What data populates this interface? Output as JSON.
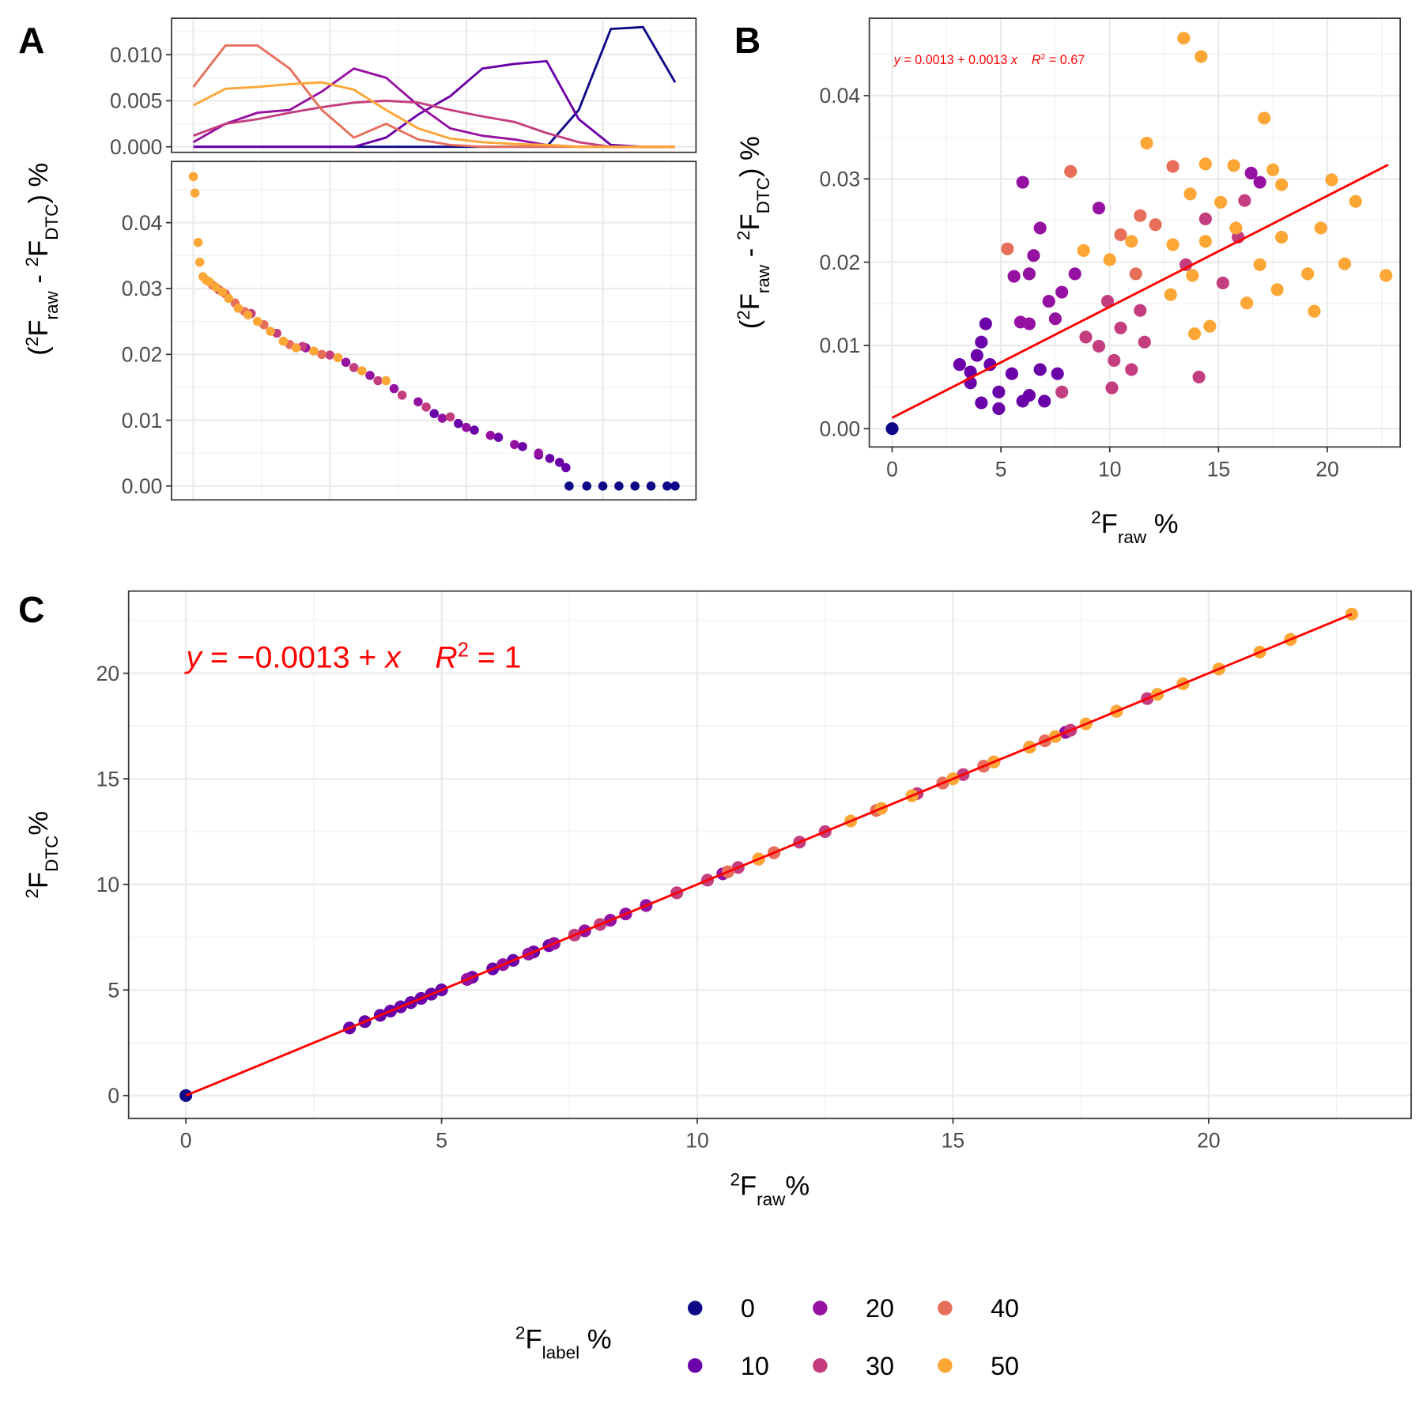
{
  "chart_data": [
    {
      "type": "line",
      "tag": "A",
      "x": [
        0,
        20,
        40,
        60,
        80,
        100,
        120,
        140,
        160,
        180,
        200,
        220,
        240,
        260,
        280,
        300
      ],
      "xlim": [
        -13.6,
        313
      ],
      "xticks": [
        0,
        85,
        170,
        255
      ],
      "xtick_labels": false,
      "ylim": [
        -0.0006,
        0.01396
      ],
      "yticks": [
        {
          "value": 0,
          "label": "0.000"
        },
        {
          "value": 0.005,
          "label": "0.005"
        },
        {
          "value": 0.01,
          "label": "0.010"
        }
      ],
      "grid": true,
      "series": [
        {
          "name": "0",
          "color": "#0d0887",
          "values": [
            0,
            0,
            0,
            0,
            0,
            0,
            0,
            0,
            0,
            0,
            0,
            0,
            0.004,
            0.0128,
            0.013,
            0.007
          ]
        },
        {
          "name": "10",
          "color": "#6a00a8",
          "values": [
            0,
            0,
            0,
            0,
            0,
            0,
            0.001,
            0.0035,
            0.0055,
            0.0085,
            0.009,
            0.0093,
            0.003,
            0.0002,
            0,
            0
          ]
        },
        {
          "name": "20",
          "color": "#9511a1",
          "values": [
            0.0005,
            0.0025,
            0.0037,
            0.004,
            0.006,
            0.0085,
            0.0075,
            0.0045,
            0.002,
            0.0012,
            0.0008,
            0.0002,
            0,
            0,
            0,
            0
          ]
        },
        {
          "name": "30",
          "color": "#c43e7f",
          "values": [
            0.0012,
            0.0025,
            0.003,
            0.0037,
            0.0043,
            0.0048,
            0.005,
            0.0048,
            0.004,
            0.0033,
            0.0027,
            0.0015,
            0.0005,
            0,
            0,
            0
          ]
        },
        {
          "name": "40",
          "color": "#e76f5a",
          "values": [
            0.0065,
            0.011,
            0.011,
            0.0085,
            0.004,
            0.001,
            0.0025,
            0.0008,
            0.0002,
            0,
            0,
            0,
            0,
            0,
            0,
            0
          ]
        },
        {
          "name": "50",
          "color": "#fca636",
          "values": [
            0.0045,
            0.0063,
            0.0065,
            0.0068,
            0.007,
            0.0062,
            0.004,
            0.002,
            0.0009,
            0.0005,
            0.0003,
            0.0002,
            0,
            0,
            0,
            0
          ]
        }
      ]
    },
    {
      "type": "scatter",
      "ylabel": [
        {
          "text": "("
        },
        {
          "text": "2",
          "script": "sup"
        },
        {
          "text": "F"
        },
        {
          "text": "raw",
          "script": "sub"
        },
        {
          "text": " - "
        },
        {
          "text": "2",
          "script": "sup"
        },
        {
          "text": "F"
        },
        {
          "text": "DTC",
          "script": "sub"
        },
        {
          "text": ") %"
        }
      ],
      "xlim": [
        -13.6,
        313
      ],
      "xticks": [
        0,
        85,
        170,
        255
      ],
      "xtick_labels": false,
      "ylim": [
        -0.0021,
        0.0493
      ],
      "yticks": [
        {
          "value": 0,
          "label": "0.00"
        },
        {
          "value": 0.01,
          "label": "0.01"
        },
        {
          "value": 0.02,
          "label": "0.02"
        },
        {
          "value": 0.03,
          "label": "0.03"
        },
        {
          "value": 0.04,
          "label": "0.04"
        }
      ],
      "grid": true,
      "series": [
        {
          "name": "0",
          "color": "#0d0887",
          "x": [
            234,
            245,
            255,
            265,
            275,
            285,
            295,
            300
          ],
          "values": [
            0,
            0,
            0,
            0,
            0,
            0,
            0,
            0
          ]
        },
        {
          "name": "10",
          "color": "#6a00a8",
          "x": [
            150,
            165,
            175,
            190,
            205,
            215,
            222,
            228,
            232
          ],
          "values": [
            0.011,
            0.0095,
            0.0085,
            0.0074,
            0.006,
            0.0047,
            0.0042,
            0.0036,
            0.0028
          ]
        },
        {
          "name": "20",
          "color": "#9511a1",
          "x": [
            70,
            95,
            110,
            125,
            140,
            155,
            170,
            185,
            200,
            215
          ],
          "values": [
            0.021,
            0.0188,
            0.0168,
            0.0148,
            0.0128,
            0.0103,
            0.0089,
            0.0077,
            0.0063,
            0.005
          ]
        },
        {
          "name": "30",
          "color": "#c43e7f",
          "x": [
            16,
            36,
            52,
            68,
            85,
            100,
            115,
            130,
            145,
            160
          ],
          "values": [
            0.0298,
            0.0262,
            0.0232,
            0.0212,
            0.0199,
            0.018,
            0.016,
            0.0138,
            0.012,
            0.0105
          ]
        },
        {
          "name": "40",
          "color": "#e76f5a",
          "x": [
            12,
            20,
            26,
            32,
            44,
            60,
            80
          ],
          "values": [
            0.0305,
            0.0292,
            0.0278,
            0.0265,
            0.0245,
            0.0215,
            0.02
          ]
        },
        {
          "name": "50",
          "color": "#fca636",
          "x": [
            0,
            1,
            3,
            4,
            6,
            8,
            10,
            14,
            18,
            22,
            28,
            34,
            40,
            48,
            56,
            64,
            75,
            90,
            105,
            120
          ],
          "values": [
            0.047,
            0.0445,
            0.037,
            0.034,
            0.0318,
            0.0313,
            0.031,
            0.0302,
            0.0295,
            0.0285,
            0.027,
            0.026,
            0.025,
            0.0235,
            0.022,
            0.021,
            0.0205,
            0.0195,
            0.0175,
            0.016
          ]
        }
      ]
    },
    {
      "type": "scatter",
      "tag": "B",
      "xlabel": [
        {
          "text": "2",
          "script": "sup"
        },
        {
          "text": "F"
        },
        {
          "text": "raw",
          "script": "sub"
        },
        {
          "text": " %"
        }
      ],
      "ylabel": [
        {
          "text": "("
        },
        {
          "text": "2",
          "script": "sup"
        },
        {
          "text": "F"
        },
        {
          "text": "raw",
          "script": "sub"
        },
        {
          "text": " - "
        },
        {
          "text": "2",
          "script": "sup"
        },
        {
          "text": "F"
        },
        {
          "text": "DTC",
          "script": "sub"
        },
        {
          "text": ") %"
        }
      ],
      "annotation": [
        {
          "text": "y",
          "italic": true
        },
        {
          "text": " = 0.0013 + 0.0013 "
        },
        {
          "text": "x",
          "italic": true
        },
        {
          "text": "    R",
          "italic": true
        },
        {
          "text": "2",
          "script": "sup"
        },
        {
          "text": " = 0.67"
        }
      ],
      "xlim": [
        -1.05,
        23.35
      ],
      "xticks": [
        0,
        5,
        10,
        15,
        20
      ],
      "ylim": [
        -0.0022,
        0.0493
      ],
      "yticks": [
        {
          "value": 0,
          "label": "0.00"
        },
        {
          "value": 0.01,
          "label": "0.01"
        },
        {
          "value": 0.02,
          "label": "0.02"
        },
        {
          "value": 0.03,
          "label": "0.03"
        },
        {
          "value": 0.04,
          "label": "0.04"
        }
      ],
      "grid": true,
      "fit": {
        "color": "#ff0000",
        "x": [
          0,
          22.8
        ],
        "values": [
          0.0013,
          0.0317
        ]
      },
      "series": [
        {
          "name": "0",
          "color": "#0d0887",
          "x": [
            0
          ],
          "values": [
            0
          ]
        },
        {
          "name": "10",
          "color": "#6a00a8",
          "x": [
            4.3,
            4.1,
            3.9,
            4.5,
            3.6,
            4.9,
            3.1,
            5.5,
            6.0,
            6.8,
            4.9,
            6.3,
            7.6,
            7.0,
            4.1,
            3.6
          ],
          "values": [
            0.0126,
            0.0104,
            0.0088,
            0.0077,
            0.0055,
            0.0044,
            0.0077,
            0.0066,
            0.0033,
            0.0071,
            0.0024,
            0.004,
            0.0066,
            0.0033,
            0.0031,
            0.0068
          ]
        },
        {
          "name": "20",
          "color": "#9511a1",
          "x": [
            6.0,
            6.8,
            6.3,
            7.2,
            7.5,
            5.6,
            6.5,
            8.4,
            9.5,
            5.9,
            7.8,
            6.3,
            16.9,
            16.5
          ],
          "values": [
            0.0296,
            0.0241,
            0.0186,
            0.0153,
            0.0132,
            0.0183,
            0.0208,
            0.0186,
            0.0265,
            0.0128,
            0.0164,
            0.0126,
            0.0296,
            0.0307
          ]
        },
        {
          "name": "30",
          "color": "#c43e7f",
          "x": [
            10.1,
            10.5,
            11.4,
            9.5,
            10.2,
            11.0,
            8.9,
            7.8,
            14.1,
            15.2,
            15.9,
            16.2,
            13.5,
            9.9,
            11.6,
            14.4
          ],
          "values": [
            0.0049,
            0.0121,
            0.0142,
            0.0099,
            0.0082,
            0.0071,
            0.011,
            0.0044,
            0.0062,
            0.0175,
            0.023,
            0.0274,
            0.0197,
            0.0153,
            0.0104,
            0.0252
          ]
        },
        {
          "name": "40",
          "color": "#e76f5a",
          "x": [
            5.3,
            8.2,
            11.4,
            12.9,
            12.1,
            10.5,
            11.2
          ],
          "values": [
            0.0216,
            0.0309,
            0.0256,
            0.0315,
            0.0245,
            0.0233,
            0.0186
          ]
        },
        {
          "name": "50",
          "color": "#fca636",
          "x": [
            13.4,
            14.2,
            17.1,
            11.7,
            14.4,
            15.7,
            17.5,
            20.2,
            17.9,
            21.3,
            13.7,
            15.1,
            11.0,
            12.9,
            14.4,
            15.8,
            17.9,
            19.7,
            22.7,
            20.8,
            19.1,
            17.7,
            19.4,
            14.6,
            13.9,
            10.0,
            8.8,
            12.8,
            16.3,
            16.9,
            13.8
          ],
          "values": [
            0.0469,
            0.0447,
            0.0373,
            0.0343,
            0.0318,
            0.0316,
            0.0311,
            0.0299,
            0.0293,
            0.0273,
            0.0282,
            0.0272,
            0.0225,
            0.0221,
            0.0225,
            0.0241,
            0.023,
            0.0241,
            0.0184,
            0.0198,
            0.0186,
            0.0167,
            0.0141,
            0.0123,
            0.0114,
            0.0203,
            0.0214,
            0.0161,
            0.0151,
            0.0197,
            0.0184
          ]
        }
      ]
    },
    {
      "type": "scatter",
      "tag": "C",
      "xlabel": [
        {
          "text": "2",
          "script": "sup"
        },
        {
          "text": "F"
        },
        {
          "text": "raw",
          "script": "sub"
        },
        {
          "text": "%"
        }
      ],
      "ylabel": [
        {
          "text": "2",
          "script": "sup"
        },
        {
          "text": "F"
        },
        {
          "text": "DTC",
          "script": "sub"
        },
        {
          "text": "%"
        }
      ],
      "annotation": [
        {
          "text": "y",
          "italic": true
        },
        {
          "text": " = −0.0013 + "
        },
        {
          "text": "x",
          "italic": true
        },
        {
          "text": "    R",
          "italic": true
        },
        {
          "text": "2",
          "script": "sup"
        },
        {
          "text": " = 1"
        }
      ],
      "xlim": [
        -1.12,
        23.96
      ],
      "xticks": [
        0,
        5,
        10,
        15,
        20
      ],
      "ylim": [
        -1.08,
        23.89
      ],
      "yticks": [
        0,
        5,
        10,
        15,
        20
      ],
      "grid": true,
      "fit": {
        "color": "#ff0000",
        "x": [
          0,
          22.8
        ],
        "values": [
          -0.0013,
          22.7987
        ]
      },
      "legend": "bottom",
      "legend_title": [
        {
          "text": "2",
          "script": "sup"
        },
        {
          "text": "F"
        },
        {
          "text": "label",
          "script": "sub"
        },
        {
          "text": " %"
        }
      ],
      "series": [
        {
          "name": "0",
          "color": "#0d0887",
          "x": [
            0
          ],
          "values": [
            0
          ]
        },
        {
          "name": "10",
          "color": "#6a00a8",
          "x": [
            3.2,
            3.5,
            3.8,
            4.0,
            4.2,
            4.4,
            4.6,
            4.8,
            5.0,
            5.6,
            6.0,
            6.4,
            6.8,
            7.1
          ],
          "values": [
            3.2,
            3.5,
            3.8,
            4.0,
            4.2,
            4.4,
            4.6,
            4.8,
            5.0,
            5.6,
            6.0,
            6.4,
            6.8,
            7.1
          ]
        },
        {
          "name": "20",
          "color": "#9511a1",
          "x": [
            5.5,
            6.2,
            6.7,
            7.2,
            7.8,
            8.3,
            8.6,
            9.0,
            10.5,
            11.2,
            16.5,
            17.2
          ],
          "values": [
            5.5,
            6.2,
            6.7,
            7.2,
            7.8,
            8.3,
            8.6,
            9.0,
            10.5,
            11.2,
            16.5,
            17.2
          ]
        },
        {
          "name": "30",
          "color": "#c43e7f",
          "x": [
            7.6,
            8.1,
            9.6,
            10.2,
            10.8,
            11.5,
            12.0,
            12.5,
            14.3,
            15.2,
            15.8,
            16.5,
            17.3,
            18.2,
            18.8
          ],
          "values": [
            7.6,
            8.1,
            9.6,
            10.2,
            10.8,
            11.5,
            12.0,
            12.5,
            14.3,
            15.2,
            15.8,
            16.5,
            17.3,
            18.2,
            18.8
          ]
        },
        {
          "name": "40",
          "color": "#e76f5a",
          "x": [
            10.6,
            11.5,
            13.5,
            14.8,
            15.6,
            16.8
          ],
          "values": [
            10.6,
            11.5,
            13.5,
            14.8,
            15.6,
            16.8
          ]
        },
        {
          "name": "50",
          "color": "#fca636",
          "x": [
            11.2,
            13.0,
            13.6,
            14.2,
            15.0,
            15.8,
            16.5,
            17.0,
            17.6,
            18.2,
            19.0,
            19.5,
            20.2,
            21.0,
            21.6,
            22.8
          ],
          "values": [
            11.2,
            13.0,
            13.6,
            14.2,
            15.0,
            15.8,
            16.5,
            17.0,
            17.6,
            18.2,
            19.0,
            19.5,
            20.2,
            21.0,
            21.6,
            22.8
          ]
        }
      ]
    }
  ]
}
